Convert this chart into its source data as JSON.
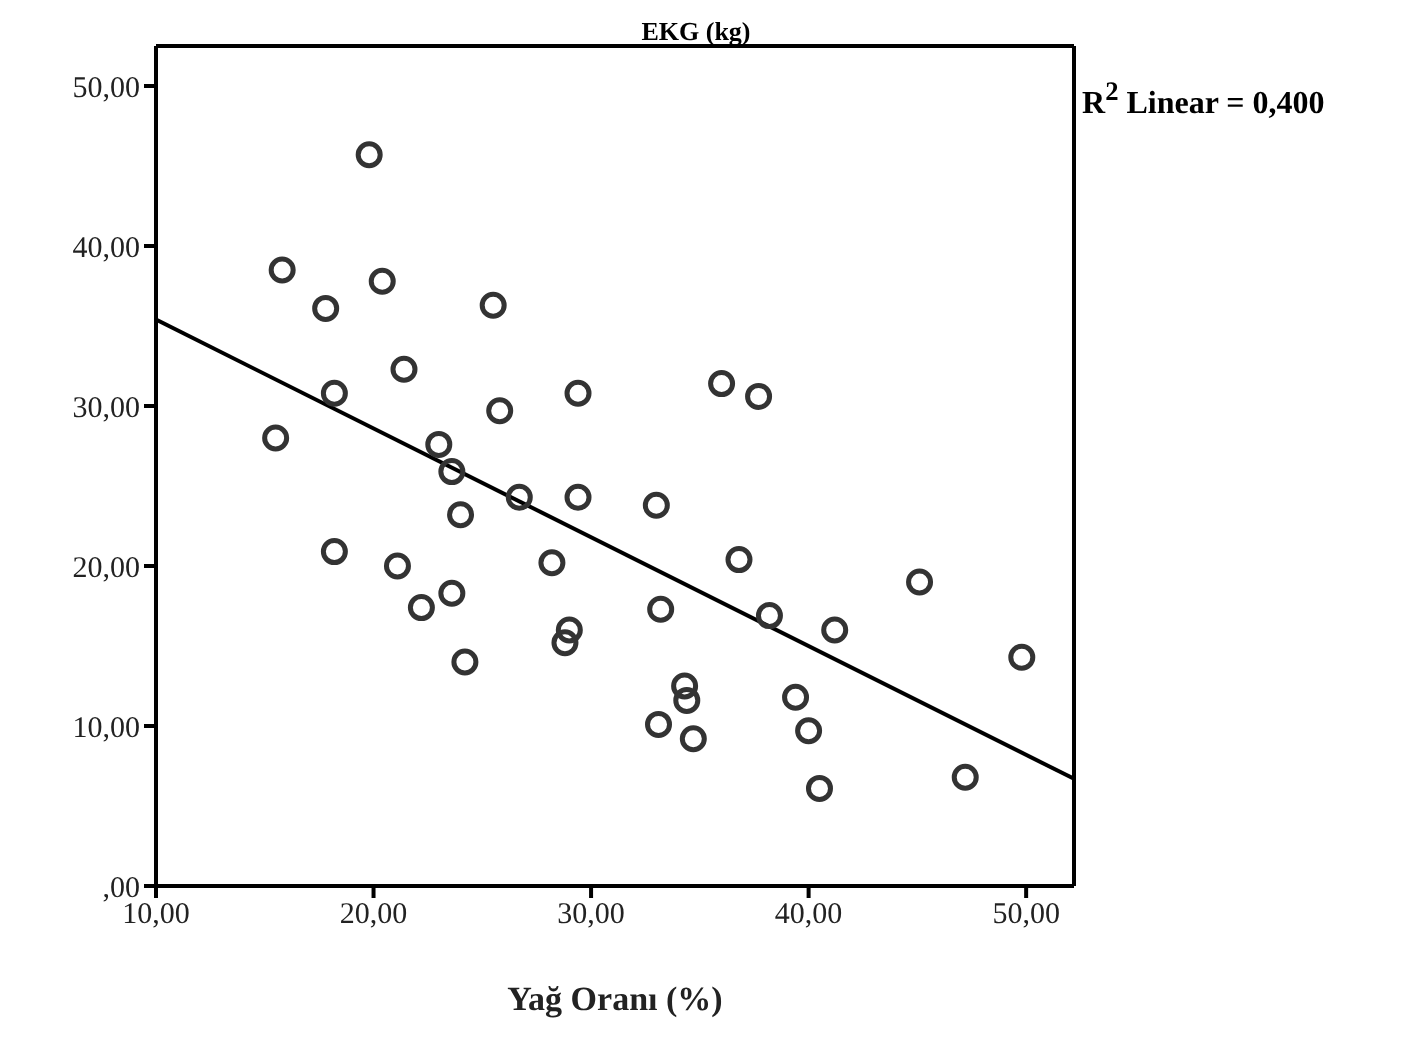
{
  "chart_data": {
    "type": "scatter",
    "title": "EKG (kg)",
    "xlabel": "Yağ Oranı (%)",
    "annotations": [
      "R$^{2}$ Linear = 0,400"
    ],
    "xlim": [
      10,
      52.2
    ],
    "ylim": [
      0,
      52.5
    ],
    "xticks": [
      {
        "value": 10,
        "label": "10,00"
      },
      {
        "value": 20,
        "label": "20,00"
      },
      {
        "value": 30,
        "label": "30,00"
      },
      {
        "value": 40,
        "label": "40,00"
      },
      {
        "value": 50,
        "label": "50,00"
      }
    ],
    "yticks": [
      {
        "value": 0,
        "label": ",00"
      },
      {
        "value": 10,
        "label": "10,00"
      },
      {
        "value": 20,
        "label": "20,00"
      },
      {
        "value": 30,
        "label": "30,00"
      },
      {
        "value": 40,
        "label": "40,00"
      },
      {
        "value": 50,
        "label": "50,00"
      }
    ],
    "legend": false,
    "series": [
      {
        "marker": "circle",
        "color": "#333333",
        "x": [
          19.8,
          15.8,
          17.8,
          20.4,
          25.5,
          21.4,
          18.2,
          25.8,
          29.4,
          36.0,
          37.7,
          15.5,
          23.0,
          23.6,
          26.7,
          29.4,
          33.0,
          24.0,
          18.2,
          21.1,
          28.2,
          36.8,
          45.1,
          22.2,
          23.6,
          33.2,
          38.2,
          41.2,
          29.0,
          28.8,
          24.2,
          49.8,
          34.3,
          34.4,
          39.4,
          40.0,
          33.1,
          34.7,
          40.5,
          47.2
        ],
        "values": [
          45.7,
          38.5,
          36.1,
          37.8,
          36.3,
          32.3,
          30.8,
          29.7,
          30.8,
          31.4,
          30.6,
          28.0,
          27.6,
          25.9,
          24.3,
          24.3,
          23.8,
          23.2,
          20.9,
          20.0,
          20.2,
          20.4,
          19.0,
          17.4,
          18.3,
          17.3,
          16.9,
          16.0,
          16.0,
          15.2,
          14.0,
          14.3,
          12.5,
          11.6,
          11.8,
          9.7,
          10.1,
          9.2,
          6.1,
          6.8
        ]
      },
      {
        "type": "line",
        "color": "#000000",
        "x": [
          10,
          52.2
        ],
        "values": [
          35.4,
          6.7
        ]
      }
    ]
  }
}
